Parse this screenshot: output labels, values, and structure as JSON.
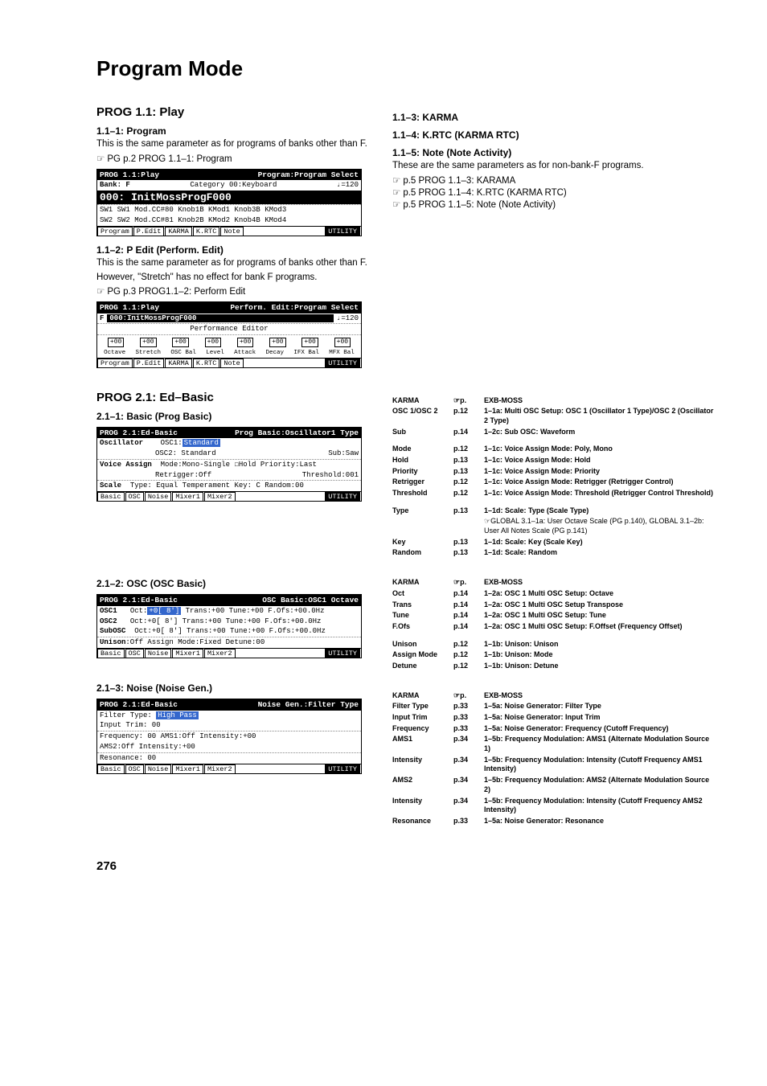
{
  "page_number": "276",
  "title": "Program Mode",
  "left_column": {
    "prog11": {
      "heading": "PROG 1.1: Play",
      "s1": {
        "heading": "1.1–1: Program",
        "body": "This is the same parameter as for programs of banks other than F.",
        "ref": "PG p.2 PROG 1.1–1: Program"
      },
      "shot1": {
        "title_l": "PROG 1.1:Play",
        "title_r": "Program:Program Select",
        "bank": "Bank: F",
        "category": "Category 00:Keyboard",
        "tempo": "♩=120",
        "big": "000: InitMossProgF000",
        "knobs_l1": "SW1 SW1 Mod.CC#80  Knob1B KMod1   Knob3B KMod3",
        "knobs_l2": "SW2 SW2 Mod.CC#81  Knob2B KMod2   Knob4B KMod4",
        "tabs": [
          "Program",
          "P.Edit",
          "KARMA",
          "K.RTC",
          "Note"
        ],
        "util": "UTILITY"
      },
      "s2": {
        "heading": "1.1–2: P Edit (Perform. Edit)",
        "body1": "This is the same parameter as for programs of banks other than F.",
        "body2": "However, \"Stretch\" has no effect for bank F programs.",
        "ref": "PG p.3 PROG1.1–2: Perform Edit"
      },
      "shot2": {
        "title_l": "PROG 1.1:Play",
        "title_r": "Perform. Edit:Program Select",
        "row1_l": "F",
        "row1_mid": "000:InitMossProgF000",
        "row1_r": "♩=120",
        "pe_label": "Performance Editor",
        "slider_vals": [
          "+00",
          "+00",
          "+00",
          "+00",
          "+00",
          "+00",
          "+00",
          "+00"
        ],
        "slider_labels": [
          "Octave",
          "Stretch",
          "OSC Bal",
          "Level",
          "Attack",
          "Decay",
          "IFX Bal",
          "MFX Bal"
        ],
        "tabs": [
          "Program",
          "P.Edit",
          "KARMA",
          "K.RTC",
          "Note"
        ],
        "util": "UTILITY"
      }
    },
    "prog21": {
      "heading": "PROG 2.1: Ed–Basic",
      "s1": {
        "heading": "2.1–1: Basic (Prog Basic)"
      },
      "shot3": {
        "title_l": "PROG 2.1:Ed-Basic",
        "title_r": "Prog Basic:Oscillator1 Type",
        "osc_label": "Oscillator",
        "osc1": "OSC1:",
        "osc1_val": "Standard",
        "osc2": "OSC2: Standard",
        "sub": "Sub:Saw",
        "va_label": "Voice Assign",
        "va": "Mode:Mono-Single  ☐Hold  Priority:Last",
        "retrig": "Retrigger:Off",
        "thresh": "Threshold:001",
        "scale_label": "Scale",
        "scale": "Type: Equal Temperament   Key: C   Random:00",
        "tabs": [
          "Basic",
          "OSC",
          "Noise",
          "Mixer1",
          "Mixer2"
        ],
        "util": "UTILITY"
      },
      "s2": {
        "heading": "2.1–2: OSC (OSC Basic)"
      },
      "shot4": {
        "title_l": "PROG 2.1:Ed-Basic",
        "title_r": "OSC Basic:OSC1 Octave",
        "osc1_label": "OSC1",
        "osc1": "Oct:",
        "osc1_hl": "+0[ 8']",
        "osc1_rest": " Trans:+00  Tune:+00  F.Ofs:+00.0Hz",
        "osc2_label": "OSC2",
        "osc2": "Oct:+0[ 8'] Trans:+00  Tune:+00  F.Ofs:+00.0Hz",
        "sub_label": "SubOSC",
        "subosc": "Oct:+0[ 8'] Trans:+00  Tune:+00  F.Ofs:+00.0Hz",
        "unison_label": "Unison",
        "unison": ":Off       Assign Mode:Fixed     Detune:00",
        "tabs": [
          "Basic",
          "OSC",
          "Noise",
          "Mixer1",
          "Mixer2"
        ],
        "util": "UTILITY"
      },
      "s3": {
        "heading": "2.1–3: Noise (Noise Gen.)"
      },
      "shot5": {
        "title_l": "PROG 2.1:Ed-Basic",
        "title_r": "Noise Gen.:Filter Type",
        "ft": "Filter Type:",
        "ft_val": "High Pass",
        "it": "Input Trim:  00",
        "freq": "Frequency:  00   AMS1:Off           Intensity:+00",
        "ams2": "                 AMS2:Off           Intensity:+00",
        "res": "Resonance:  00",
        "tabs": [
          "Basic",
          "OSC",
          "Noise",
          "Mixer1",
          "Mixer2"
        ],
        "util": "UTILITY"
      }
    }
  },
  "right_column": {
    "s3": {
      "heading": "1.1–3: KARMA"
    },
    "s4": {
      "heading": "1.1–4: K.RTC (KARMA RTC)"
    },
    "s5": {
      "heading": "1.1–5: Note (Note Activity)",
      "body": "These are the same parameters as for non-bank-F programs.",
      "refs": [
        "p.5 PROG 1.1–3: KARAMA",
        "p.5 PROG 1.1–4: K.RTC (KARMA RTC)",
        "p.5 PROG 1.1–5: Note (Note Activity)"
      ]
    },
    "table1": {
      "header": [
        "KARMA",
        "☞p.",
        "EXB-MOSS"
      ],
      "rows": [
        [
          "OSC 1/OSC 2",
          "p.12",
          "1–1a: Multi OSC Setup: OSC 1 (Oscillator 1 Type)/OSC 2 (Oscillator 2 Type)"
        ],
        [
          "Sub",
          "p.14",
          "1–2c: Sub OSC: Waveform"
        ],
        [
          "",
          "",
          ""
        ],
        [
          "Mode",
          "p.12",
          "1–1c: Voice Assign Mode: Poly, Mono"
        ],
        [
          "Hold",
          "p.13",
          "1–1c: Voice Assign Mode: Hold"
        ],
        [
          "Priority",
          "p.13",
          "1–1c: Voice Assign Mode: Priority"
        ],
        [
          "Retrigger",
          "p.12",
          "1–1c: Voice Assign Mode: Retrigger (Retrigger Control)"
        ],
        [
          "Threshold",
          "p.12",
          "1–1c: Voice Assign Mode: Threshold (Retrigger Control Threshold)"
        ],
        [
          "",
          "",
          ""
        ],
        [
          "Type",
          "p.13",
          "1–1d: Scale: Type (Scale Type)"
        ]
      ],
      "note": "☞GLOBAL 3.1–1a: User Octave Scale (PG p.140), GLOBAL 3.1–2b: User All Notes Scale (PG p.141)",
      "rows2": [
        [
          "Key",
          "p.13",
          "1–1d: Scale: Key (Scale Key)"
        ],
        [
          "Random",
          "p.13",
          "1–1d: Scale: Random"
        ]
      ]
    },
    "table2": {
      "header": [
        "KARMA",
        "☞p.",
        "EXB-MOSS"
      ],
      "rows": [
        [
          "Oct",
          "p.14",
          "1–2a: OSC 1 Multi OSC Setup: Octave"
        ],
        [
          "Trans",
          "p.14",
          "1–2a: OSC 1 Multi OSC Setup Transpose"
        ],
        [
          "Tune",
          "p.14",
          "1–2a: OSC 1 Multi OSC Setup: Tune"
        ],
        [
          "F.Ofs",
          "p.14",
          "1–2a: OSC 1 Multi OSC Setup: F.Offset (Frequency Offset)"
        ],
        [
          "",
          "",
          ""
        ],
        [
          "Unison",
          "p.12",
          "1–1b: Unison: Unison"
        ],
        [
          "Assign Mode",
          "p.12",
          "1–1b: Unison: Mode"
        ],
        [
          "Detune",
          "p.12",
          "1–1b: Unison: Detune"
        ]
      ]
    },
    "table3": {
      "header": [
        "KARMA",
        "☞p.",
        "EXB-MOSS"
      ],
      "rows": [
        [
          "Filter Type",
          "p.33",
          "1–5a: Noise Generator: Filter Type"
        ],
        [
          "Input Trim",
          "p.33",
          "1–5a: Noise Generator: Input Trim"
        ],
        [
          "Frequency",
          "p.33",
          "1–5a: Noise Generator: Frequency (Cutoff Frequency)"
        ],
        [
          "AMS1",
          "p.34",
          "1–5b: Frequency Modulation: AMS1 (Alternate Modulation Source 1)"
        ],
        [
          "Intensity",
          "p.34",
          "1–5b: Frequency Modulation: Intensity (Cutoff Frequency AMS1 Intensity)"
        ],
        [
          "AMS2",
          "p.34",
          "1–5b: Frequency Modulation: AMS2 (Alternate Modulation Source 2)"
        ],
        [
          "Intensity",
          "p.34",
          "1–5b: Frequency Modulation: Intensity (Cutoff Frequency AMS2 Intensity)"
        ],
        [
          "Resonance",
          "p.33",
          "1–5a: Noise Generator: Resonance"
        ]
      ]
    }
  }
}
